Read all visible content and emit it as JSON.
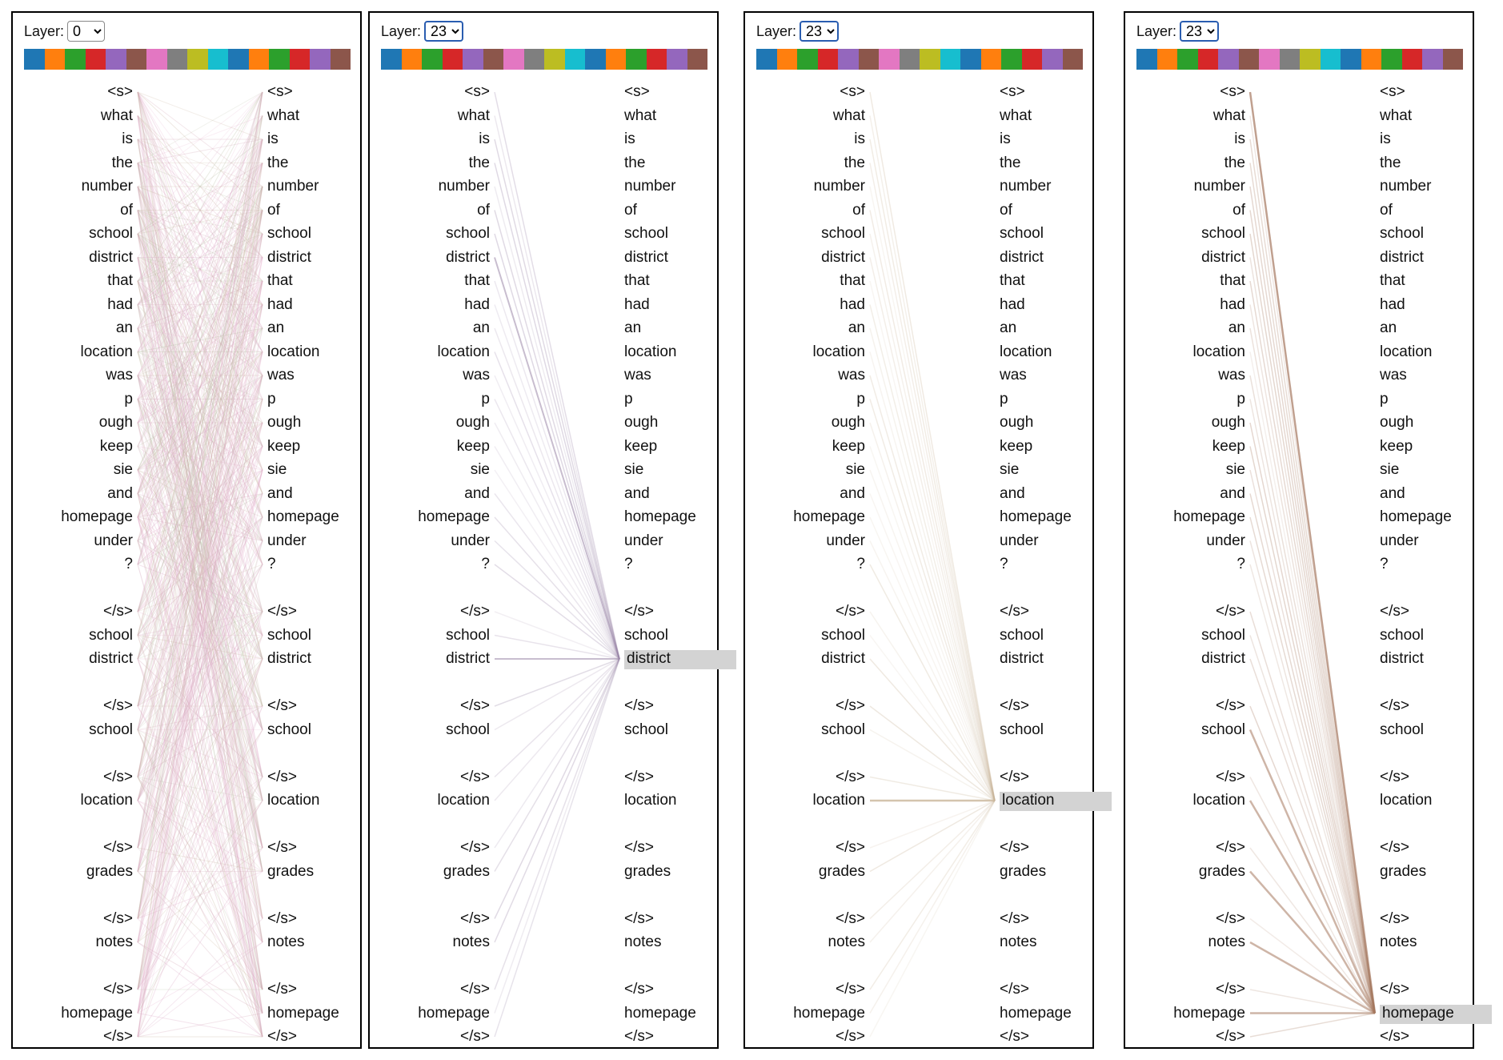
{
  "layer_label": "Layer:",
  "head_colors": [
    "#1f77b4",
    "#ff7f0e",
    "#2ca02c",
    "#d62728",
    "#9467bd",
    "#8c564b",
    "#e377c2",
    "#7f7f7f",
    "#bcbd22",
    "#17becf",
    "#1f77b4",
    "#ff7f0e",
    "#2ca02c",
    "#d62728",
    "#9467bd",
    "#8c564b"
  ],
  "tokens": [
    "<s>",
    "what",
    "is",
    "the",
    "number",
    "of",
    "school",
    "district",
    "that",
    "had",
    "an",
    "location",
    "was",
    "p",
    "ough",
    "keep",
    "sie",
    "and",
    "homepage",
    "under",
    "?",
    "",
    "</s>",
    "school",
    "district",
    "",
    "</s>",
    "school",
    "",
    "</s>",
    "location",
    "",
    "</s>",
    "grades",
    "",
    "</s>",
    "notes",
    "",
    "</s>",
    "homepage",
    "</s>"
  ],
  "panels": [
    {
      "layer": "0",
      "layer_options": [
        "0",
        "23"
      ],
      "selected_token": null,
      "highlight": "#c9a0b8"
    },
    {
      "layer": "23",
      "layer_options": [
        "0",
        "23"
      ],
      "selected_token": 24,
      "highlight": "#9a86a8"
    },
    {
      "layer": "23",
      "layer_options": [
        "0",
        "23"
      ],
      "selected_token": 30,
      "highlight": "#c9b59a"
    },
    {
      "layer": "23",
      "layer_options": [
        "0",
        "23"
      ],
      "selected_token": 39,
      "highlight": "#a5785f"
    }
  ]
}
